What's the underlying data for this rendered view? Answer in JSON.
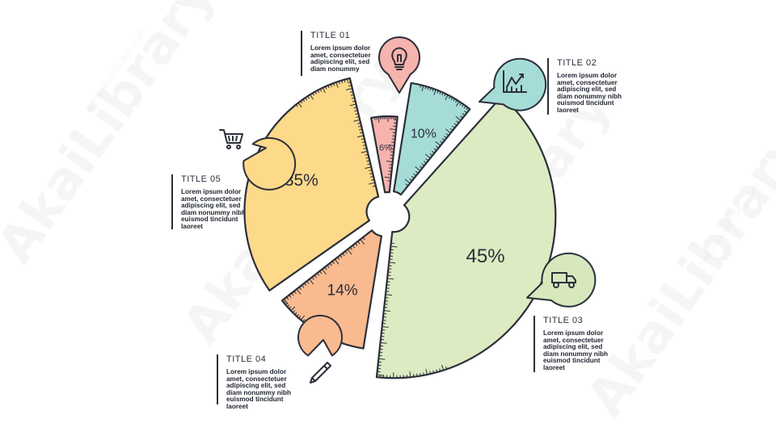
{
  "watermark": "AkaiLibrary",
  "watermark_sub": "www.akailibrary.com",
  "chart_data": {
    "type": "pie",
    "categories": [
      "TITLE 01",
      "TITLE 02",
      "TITLE 03",
      "TITLE 04",
      "TITLE 05"
    ],
    "values": [
      6,
      10,
      45,
      14,
      35
    ],
    "labels": [
      "6%",
      "10%",
      "45%",
      "14%",
      "35%"
    ],
    "colors": [
      "#f7b3ae",
      "#a6dcd7",
      "#dcebc1",
      "#f9ba8f",
      "#fdd98a"
    ],
    "icon_colors": [
      "#f7b3ae",
      "#a6dcd7",
      "#d7e8bd",
      "#f9ba8f",
      "#fdd98a"
    ],
    "icons": [
      "lightbulb-icon",
      "line-chart-icon",
      "truck-icon",
      "pencil-icon",
      "shopping-cart-icon"
    ],
    "legend": "callouts around chart"
  },
  "callouts": [
    {
      "title": "TITLE 01",
      "body": "Lorem ipsum dolor amet, consectetuer adipiscing elit, sed diam nonummy"
    },
    {
      "title": "TITLE 02",
      "body": "Lorem ipsum dolor amet, consectetuer adipiscing elit, sed diam nonummy nibh euismod tincidunt laoreet"
    },
    {
      "title": "TITLE 03",
      "body": "Lorem ipsum dolor amet, consectetuer adipiscing elit, sed diam nonummy nibh euismod tincidunt laoreet"
    },
    {
      "title": "TITLE 04",
      "body": "Lorem ipsum dolor amet, consectetuer adipiscing elit, sed diam nonummy nibh euismod tincidunt laoreet"
    },
    {
      "title": "TITLE 05",
      "body": "Lorem ipsum dolor amet, consectetuer adipiscing elit, sed diam nonummy nibh euismod tincidunt laoreet"
    }
  ]
}
